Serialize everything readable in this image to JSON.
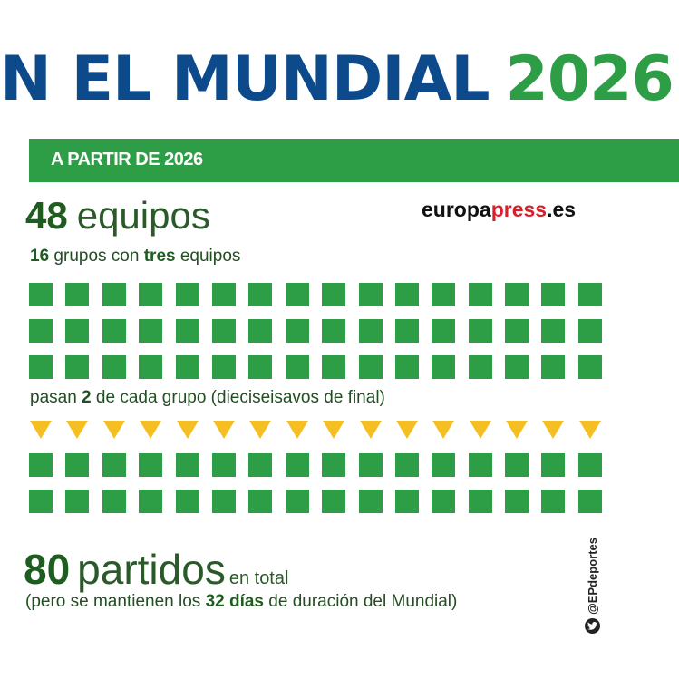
{
  "title": {
    "main": "N EL MUNDIAL",
    "year": "2026"
  },
  "banner": {
    "label": "A PARTIR DE 2026"
  },
  "teams": {
    "number": "48",
    "word": "equipos"
  },
  "brand": {
    "part1": "europa",
    "part2": "press",
    "part3": ".es"
  },
  "groups": {
    "number": "16",
    "text1": " grupos con ",
    "strong": "tres",
    "text2": " equipos"
  },
  "advance": {
    "text1": "pasan ",
    "strong": "2",
    "text2": " de cada grupo (dieciseisavos de final)"
  },
  "matches": {
    "number": "80",
    "word": "partidos",
    "suffix": "en total"
  },
  "note": {
    "text1": "(pero se mantienen los ",
    "strong": "32 días",
    "text2": " de duración del Mundial)"
  },
  "social": {
    "handle": "@EPdeportes",
    "icon": "twitter-bird-icon"
  },
  "grids": {
    "top_squares": 48,
    "triangles": 16,
    "bottom_squares": 32
  },
  "colors": {
    "green": "#2e9e46",
    "blue": "#0d4a8c",
    "yellow": "#f5bf23",
    "red": "#d9202a"
  }
}
